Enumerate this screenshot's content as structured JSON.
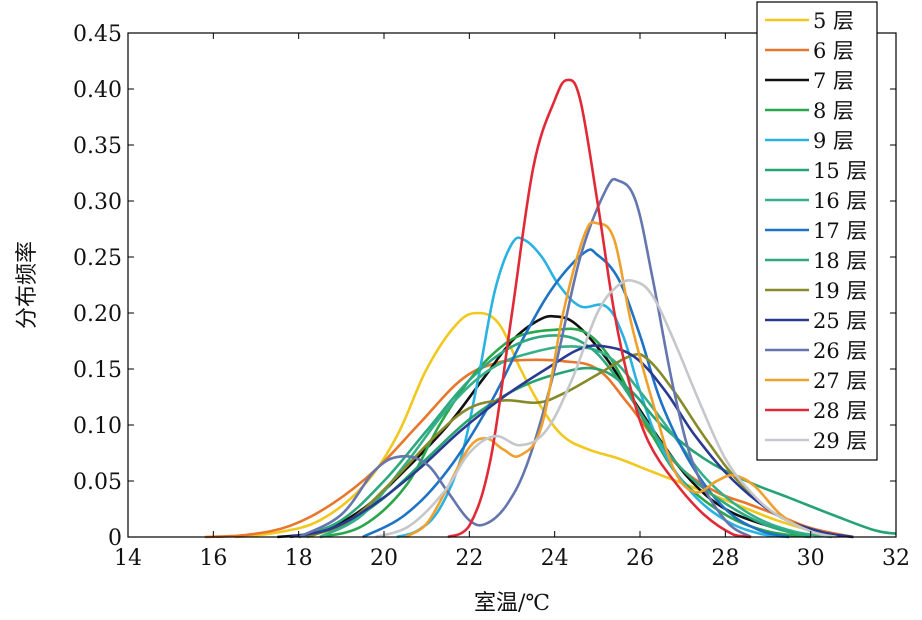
{
  "chart_data": {
    "type": "line",
    "xlabel": "室温/℃",
    "ylabel": "分布频率",
    "xlim": [
      14,
      32
    ],
    "ylim": [
      0,
      0.45
    ],
    "xticks": [
      14,
      16,
      18,
      20,
      22,
      24,
      26,
      28,
      30,
      32
    ],
    "xtick_labels": [
      "14",
      "16",
      "18",
      "20",
      "22",
      "24",
      "26",
      "28",
      "30",
      "32"
    ],
    "yticks": [
      0,
      0.05,
      0.1,
      0.15,
      0.2,
      0.25,
      0.3,
      0.35,
      0.4,
      0.45
    ],
    "ytick_labels": [
      "0",
      "0.05",
      "0.10",
      "0.15",
      "0.20",
      "0.25",
      "0.30",
      "0.35",
      "0.40",
      "0.45"
    ],
    "grid": false,
    "legend_position": "top-right",
    "series": [
      {
        "name": "5 层",
        "color": "#f2c81f",
        "points": [
          [
            16.5,
            0
          ],
          [
            17.5,
            0.004
          ],
          [
            18.5,
            0.015
          ],
          [
            19.5,
            0.045
          ],
          [
            20.3,
            0.09
          ],
          [
            21,
            0.15
          ],
          [
            21.7,
            0.19
          ],
          [
            22.2,
            0.2
          ],
          [
            22.7,
            0.19
          ],
          [
            23.2,
            0.15
          ],
          [
            23.7,
            0.115
          ],
          [
            24.2,
            0.09
          ],
          [
            24.8,
            0.078
          ],
          [
            25.5,
            0.07
          ],
          [
            26.3,
            0.058
          ],
          [
            27.2,
            0.045
          ],
          [
            28.2,
            0.03
          ],
          [
            29.2,
            0.015
          ],
          [
            30.2,
            0.004
          ],
          [
            31,
            0
          ]
        ]
      },
      {
        "name": "6 层",
        "color": "#e8762c",
        "points": [
          [
            15.8,
            0
          ],
          [
            16.8,
            0.002
          ],
          [
            17.8,
            0.01
          ],
          [
            18.8,
            0.03
          ],
          [
            19.8,
            0.06
          ],
          [
            20.8,
            0.1
          ],
          [
            21.8,
            0.14
          ],
          [
            22.6,
            0.155
          ],
          [
            23.3,
            0.158
          ],
          [
            24.2,
            0.157
          ],
          [
            25,
            0.15
          ],
          [
            25.7,
            0.12
          ],
          [
            26.3,
            0.09
          ],
          [
            27,
            0.06
          ],
          [
            27.8,
            0.04
          ],
          [
            28.5,
            0.03
          ],
          [
            29.2,
            0.02
          ],
          [
            30,
            0.008
          ],
          [
            31,
            0
          ]
        ]
      },
      {
        "name": "7 层",
        "color": "#111111",
        "points": [
          [
            17.5,
            0
          ],
          [
            18.5,
            0.005
          ],
          [
            19.5,
            0.025
          ],
          [
            20.5,
            0.06
          ],
          [
            21.5,
            0.1
          ],
          [
            22.3,
            0.14
          ],
          [
            23,
            0.175
          ],
          [
            23.6,
            0.193
          ],
          [
            24,
            0.197
          ],
          [
            24.5,
            0.19
          ],
          [
            25.2,
            0.16
          ],
          [
            25.8,
            0.125
          ],
          [
            26.5,
            0.085
          ],
          [
            27.2,
            0.05
          ],
          [
            28,
            0.025
          ],
          [
            29,
            0.01
          ],
          [
            30,
            0
          ]
        ]
      },
      {
        "name": "8 层",
        "color": "#2aa64b",
        "points": [
          [
            18.5,
            0
          ],
          [
            19.5,
            0.01
          ],
          [
            20.5,
            0.045
          ],
          [
            21.3,
            0.1
          ],
          [
            22,
            0.14
          ],
          [
            22.6,
            0.165
          ],
          [
            23.2,
            0.18
          ],
          [
            24,
            0.185
          ],
          [
            24.7,
            0.183
          ],
          [
            25.3,
            0.16
          ],
          [
            25.8,
            0.125
          ],
          [
            26.3,
            0.09
          ],
          [
            27,
            0.05
          ],
          [
            28,
            0.02
          ],
          [
            29,
            0.005
          ],
          [
            30,
            0
          ]
        ]
      },
      {
        "name": "9 层",
        "color": "#29b2e2",
        "points": [
          [
            20.3,
            0
          ],
          [
            20.8,
            0.006
          ],
          [
            21.3,
            0.025
          ],
          [
            21.8,
            0.07
          ],
          [
            22.2,
            0.14
          ],
          [
            22.6,
            0.22
          ],
          [
            23,
            0.262
          ],
          [
            23.3,
            0.265
          ],
          [
            23.7,
            0.25
          ],
          [
            24.1,
            0.225
          ],
          [
            24.6,
            0.206
          ],
          [
            25.2,
            0.206
          ],
          [
            25.6,
            0.18
          ],
          [
            26,
            0.13
          ],
          [
            26.5,
            0.08
          ],
          [
            27.2,
            0.04
          ],
          [
            28,
            0.015
          ],
          [
            28.8,
            0.003
          ],
          [
            29.5,
            0
          ]
        ]
      },
      {
        "name": "15 层",
        "color": "#26a373",
        "points": [
          [
            18,
            0
          ],
          [
            19,
            0.01
          ],
          [
            20,
            0.035
          ],
          [
            21,
            0.07
          ],
          [
            22,
            0.105
          ],
          [
            23,
            0.13
          ],
          [
            24,
            0.145
          ],
          [
            25,
            0.15
          ],
          [
            25.8,
            0.13
          ],
          [
            26.5,
            0.1
          ],
          [
            27.5,
            0.07
          ],
          [
            28.5,
            0.05
          ],
          [
            29.5,
            0.035
          ],
          [
            30.5,
            0.02
          ],
          [
            31.5,
            0.006
          ],
          [
            32,
            0.003
          ]
        ]
      },
      {
        "name": "16 层",
        "color": "#35b08a",
        "points": [
          [
            18.5,
            0
          ],
          [
            19.5,
            0.02
          ],
          [
            20.5,
            0.065
          ],
          [
            21.5,
            0.115
          ],
          [
            22.5,
            0.15
          ],
          [
            23.5,
            0.165
          ],
          [
            24.5,
            0.17
          ],
          [
            25.3,
            0.16
          ],
          [
            26,
            0.13
          ],
          [
            26.8,
            0.09
          ],
          [
            27.6,
            0.05
          ],
          [
            28.6,
            0.02
          ],
          [
            29.6,
            0.005
          ],
          [
            30.5,
            0
          ]
        ]
      },
      {
        "name": "17 层",
        "color": "#1f73c4",
        "points": [
          [
            19.5,
            0
          ],
          [
            20.5,
            0.02
          ],
          [
            21.5,
            0.06
          ],
          [
            22.5,
            0.12
          ],
          [
            23.3,
            0.18
          ],
          [
            24,
            0.225
          ],
          [
            24.7,
            0.254
          ],
          [
            25,
            0.252
          ],
          [
            25.5,
            0.23
          ],
          [
            26,
            0.18
          ],
          [
            26.5,
            0.12
          ],
          [
            27.2,
            0.065
          ],
          [
            28,
            0.025
          ],
          [
            28.8,
            0.006
          ],
          [
            29.5,
            0
          ]
        ]
      },
      {
        "name": "18 层",
        "color": "#2ea87e",
        "points": [
          [
            18,
            0
          ],
          [
            19,
            0.015
          ],
          [
            20,
            0.05
          ],
          [
            21,
            0.095
          ],
          [
            22,
            0.14
          ],
          [
            23,
            0.17
          ],
          [
            24,
            0.18
          ],
          [
            24.8,
            0.17
          ],
          [
            25.5,
            0.14
          ],
          [
            26.2,
            0.1
          ],
          [
            27,
            0.06
          ],
          [
            28,
            0.03
          ],
          [
            29,
            0.01
          ],
          [
            30,
            0
          ]
        ]
      },
      {
        "name": "19 层",
        "color": "#878a2a",
        "points": [
          [
            18.2,
            0
          ],
          [
            19.2,
            0.015
          ],
          [
            20.2,
            0.05
          ],
          [
            21.2,
            0.09
          ],
          [
            22,
            0.115
          ],
          [
            22.8,
            0.122
          ],
          [
            23.6,
            0.12
          ],
          [
            24.2,
            0.128
          ],
          [
            25,
            0.145
          ],
          [
            25.8,
            0.162
          ],
          [
            26.2,
            0.158
          ],
          [
            26.8,
            0.13
          ],
          [
            27.5,
            0.09
          ],
          [
            28.3,
            0.05
          ],
          [
            29.2,
            0.02
          ],
          [
            30.2,
            0.005
          ],
          [
            31,
            0
          ]
        ]
      },
      {
        "name": "25 层",
        "color": "#2a3a92",
        "points": [
          [
            17.8,
            0
          ],
          [
            18.8,
            0.008
          ],
          [
            19.8,
            0.03
          ],
          [
            20.8,
            0.06
          ],
          [
            21.8,
            0.095
          ],
          [
            22.8,
            0.125
          ],
          [
            23.8,
            0.15
          ],
          [
            24.6,
            0.168
          ],
          [
            25.2,
            0.17
          ],
          [
            25.9,
            0.16
          ],
          [
            26.6,
            0.13
          ],
          [
            27.3,
            0.09
          ],
          [
            28.2,
            0.05
          ],
          [
            29.2,
            0.02
          ],
          [
            30.2,
            0.005
          ],
          [
            31,
            0
          ]
        ]
      },
      {
        "name": "26 层",
        "color": "#6575ae",
        "points": [
          [
            18,
            0
          ],
          [
            19,
            0.02
          ],
          [
            19.8,
            0.06
          ],
          [
            20.4,
            0.072
          ],
          [
            21,
            0.065
          ],
          [
            21.5,
            0.04
          ],
          [
            22,
            0.015
          ],
          [
            22.4,
            0.012
          ],
          [
            22.9,
            0.03
          ],
          [
            23.4,
            0.07
          ],
          [
            24,
            0.15
          ],
          [
            24.6,
            0.25
          ],
          [
            25.2,
            0.31
          ],
          [
            25.5,
            0.318
          ],
          [
            25.9,
            0.3
          ],
          [
            26.3,
            0.23
          ],
          [
            26.8,
            0.13
          ],
          [
            27.3,
            0.06
          ],
          [
            28,
            0.015
          ],
          [
            28.6,
            0
          ]
        ]
      },
      {
        "name": "27 层",
        "color": "#efa12d",
        "points": [
          [
            20.5,
            0
          ],
          [
            21,
            0.012
          ],
          [
            21.5,
            0.045
          ],
          [
            22,
            0.08
          ],
          [
            22.4,
            0.088
          ],
          [
            22.8,
            0.078
          ],
          [
            23.2,
            0.073
          ],
          [
            23.7,
            0.1
          ],
          [
            24.2,
            0.2
          ],
          [
            24.7,
            0.27
          ],
          [
            25,
            0.28
          ],
          [
            25.4,
            0.265
          ],
          [
            25.8,
            0.19
          ],
          [
            26.3,
            0.12
          ],
          [
            26.8,
            0.06
          ],
          [
            27.3,
            0.04
          ],
          [
            27.8,
            0.05
          ],
          [
            28.2,
            0.055
          ],
          [
            28.7,
            0.045
          ],
          [
            29.3,
            0.02
          ],
          [
            30,
            0.005
          ],
          [
            30.6,
            0
          ]
        ]
      },
      {
        "name": "28 层",
        "color": "#e12a37",
        "points": [
          [
            21.5,
            0
          ],
          [
            22,
            0.01
          ],
          [
            22.5,
            0.07
          ],
          [
            23,
            0.2
          ],
          [
            23.5,
            0.33
          ],
          [
            24,
            0.39
          ],
          [
            24.3,
            0.408
          ],
          [
            24.6,
            0.39
          ],
          [
            25,
            0.3
          ],
          [
            25.4,
            0.2
          ],
          [
            25.8,
            0.13
          ],
          [
            26.2,
            0.085
          ],
          [
            26.8,
            0.05
          ],
          [
            27.5,
            0.02
          ],
          [
            28.2,
            0.002
          ],
          [
            28.6,
            0
          ]
        ]
      },
      {
        "name": "29 层",
        "color": "#c5c7cc",
        "points": [
          [
            19.8,
            0
          ],
          [
            20.6,
            0.01
          ],
          [
            21.4,
            0.04
          ],
          [
            22,
            0.075
          ],
          [
            22.6,
            0.09
          ],
          [
            23.2,
            0.082
          ],
          [
            23.8,
            0.095
          ],
          [
            24.4,
            0.14
          ],
          [
            25,
            0.2
          ],
          [
            25.5,
            0.225
          ],
          [
            25.9,
            0.228
          ],
          [
            26.3,
            0.215
          ],
          [
            26.8,
            0.175
          ],
          [
            27.4,
            0.12
          ],
          [
            28,
            0.07
          ],
          [
            28.6,
            0.04
          ],
          [
            29.2,
            0.02
          ],
          [
            30,
            0.005
          ],
          [
            30.6,
            0
          ]
        ]
      }
    ]
  }
}
